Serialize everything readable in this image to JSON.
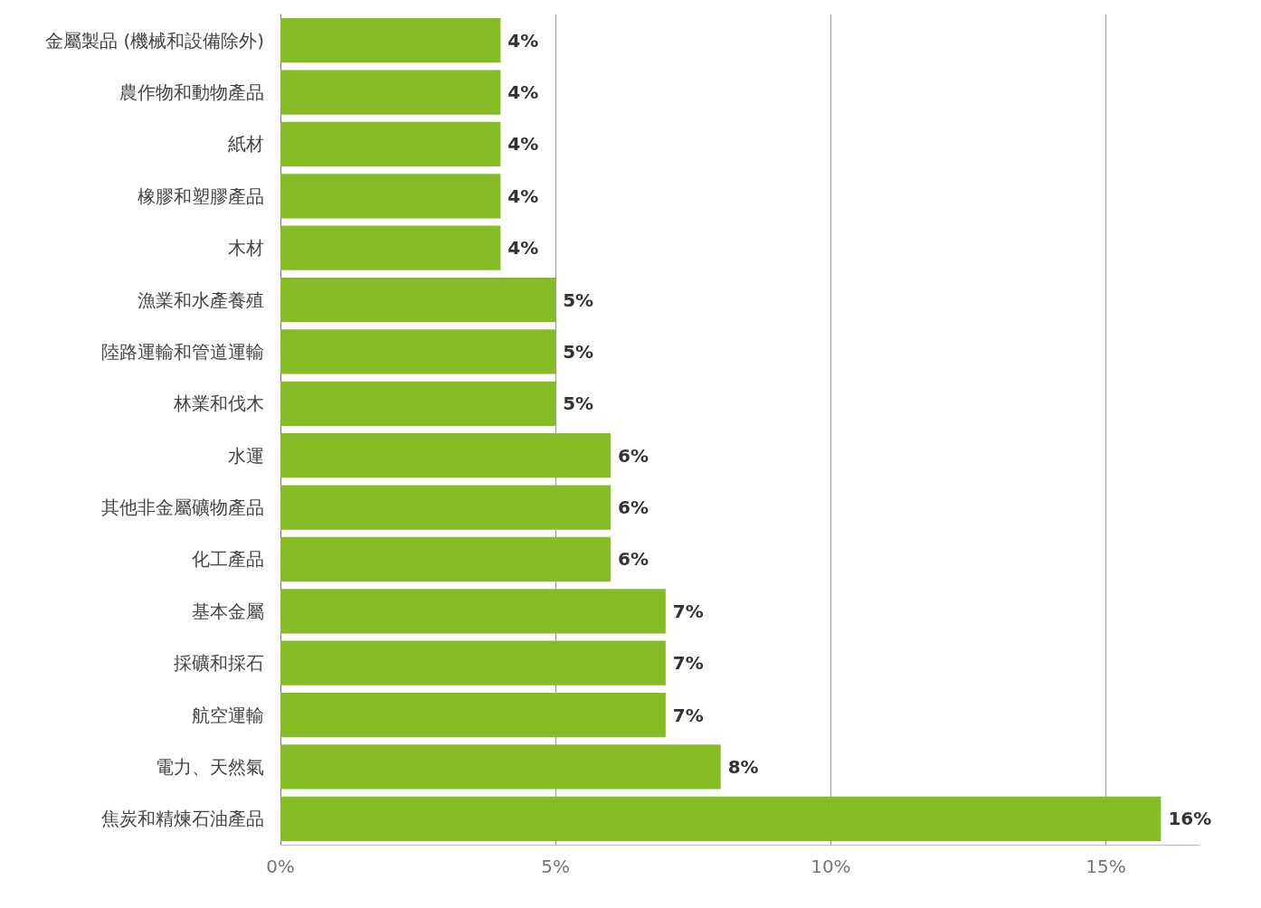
{
  "chart_data": {
    "type": "bar",
    "orientation": "horizontal",
    "categories": [
      "金屬製品 (機械和設備除外)",
      "農作物和動物產品",
      "紙材",
      "橡膠和塑膠產品",
      "木材",
      "漁業和水產養殖",
      "陸路運輸和管道運輸",
      "林業和伐木",
      "水運",
      "其他非金屬礦物產品",
      "化工產品",
      "基本金屬",
      "採礦和採石",
      "航空運輸",
      "電力、天然氣",
      "焦炭和精煉石油產品"
    ],
    "values": [
      4,
      4,
      4,
      4,
      4,
      5,
      5,
      5,
      6,
      6,
      6,
      7,
      7,
      7,
      8,
      16
    ],
    "value_labels": [
      "4%",
      "4%",
      "4%",
      "4%",
      "4%",
      "5%",
      "5%",
      "5%",
      "6%",
      "6%",
      "6%",
      "7%",
      "7%",
      "7%",
      "8%",
      "16%"
    ],
    "color": "#86bc25",
    "xlim": [
      0,
      16.7
    ],
    "xticks": [
      {
        "value": 0,
        "label": "0%"
      },
      {
        "value": 5,
        "label": "5%"
      },
      {
        "value": 10,
        "label": "10%"
      },
      {
        "value": 15,
        "label": "15%"
      }
    ],
    "grid": "x"
  }
}
